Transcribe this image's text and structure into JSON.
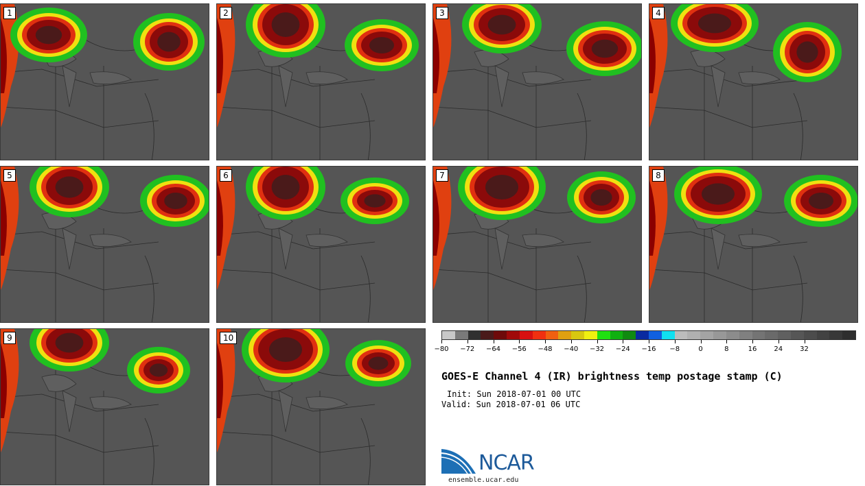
{
  "title": "GOES-E Channel 4 (IR) brightness temp postage stamp (C)",
  "init_line": "Init: Sun 2018-07-01 00 UTC",
  "valid_line": "Valid: Sun 2018-07-01 06 UTC",
  "logo": {
    "wordmark": "NCAR",
    "site": "ensemble.ucar.edu",
    "accent_color": "#1d6fb5"
  },
  "panels": [
    {
      "label": "1"
    },
    {
      "label": "2"
    },
    {
      "label": "3"
    },
    {
      "label": "4"
    },
    {
      "label": "5"
    },
    {
      "label": "6"
    },
    {
      "label": "7"
    },
    {
      "label": "8"
    },
    {
      "label": "9"
    },
    {
      "label": "10"
    }
  ],
  "colorbar": {
    "tick_labels": [
      "-80",
      "-72",
      "-64",
      "-56",
      "-48",
      "-40",
      "-32",
      "-24",
      "-16",
      "-8",
      "0",
      "8",
      "16",
      "24",
      "32"
    ],
    "colors": [
      "#c8c8c8",
      "#7a7a7a",
      "#303030",
      "#4a1a1a",
      "#6e0a0a",
      "#a00a0a",
      "#d81010",
      "#f03010",
      "#f06010",
      "#e0a010",
      "#d8c810",
      "#f0f010",
      "#20e010",
      "#10b010",
      "#108a10",
      "#0a2aa0",
      "#1060e0",
      "#10e0f0",
      "#bcbcbc",
      "#b0b0b0",
      "#a4a4a4",
      "#989898",
      "#8c8c8c",
      "#808080",
      "#747474",
      "#6a6a6a",
      "#606060",
      "#565656",
      "#4c4c4c",
      "#424242",
      "#383838",
      "#2e2e2e"
    ]
  }
}
